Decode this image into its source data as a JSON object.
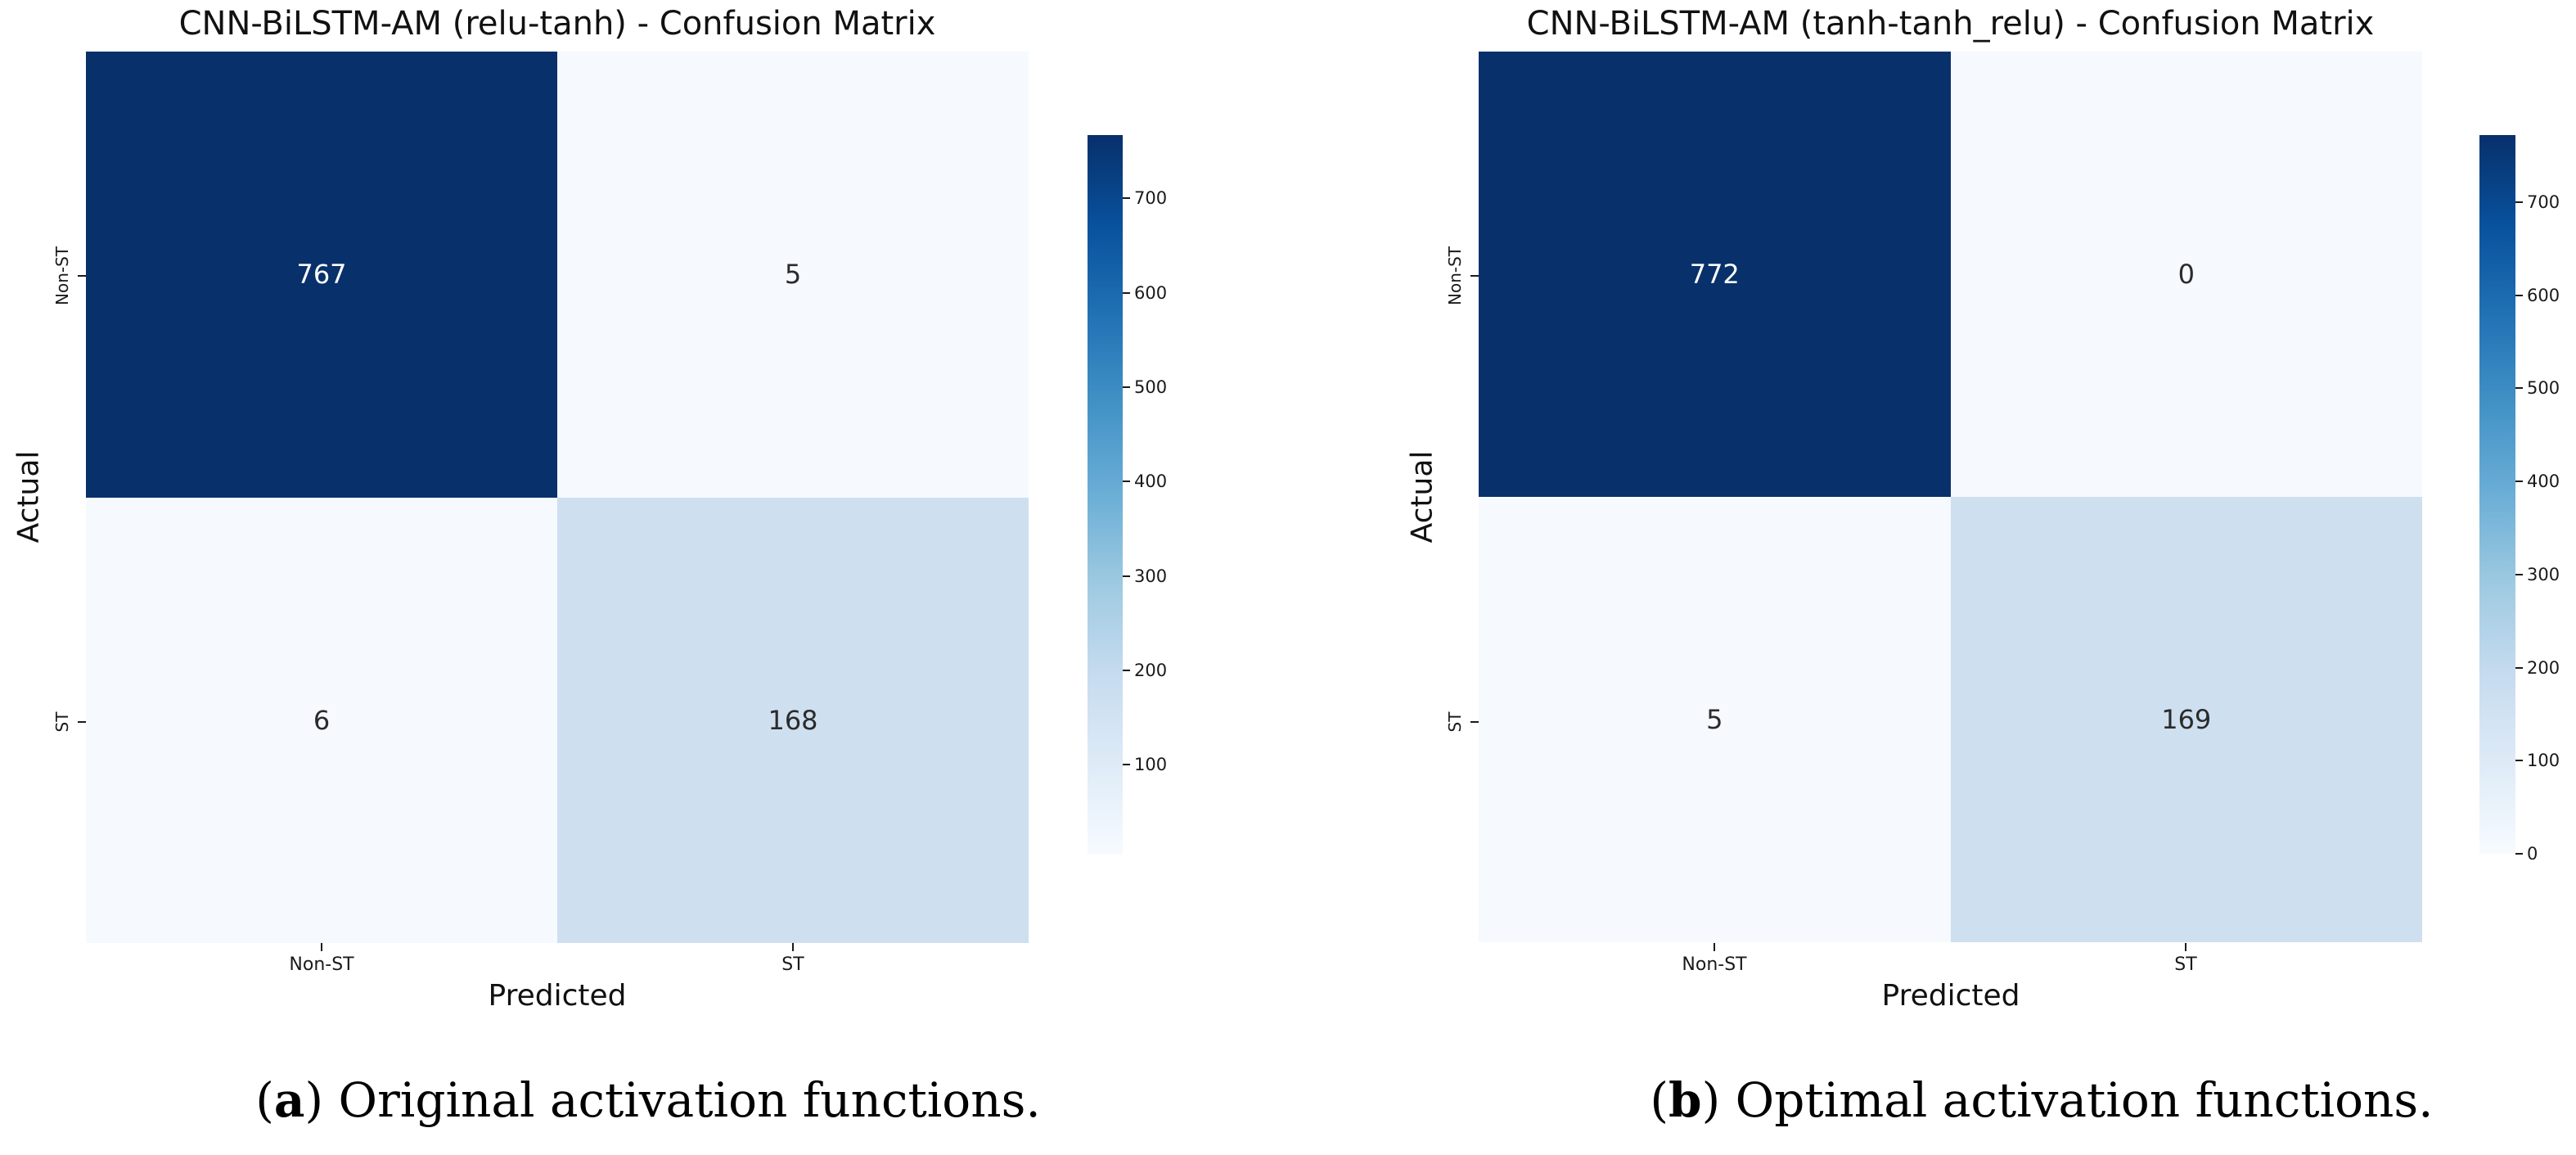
{
  "chart_data": [
    {
      "type": "heatmap",
      "title": "CNN-BiLSTM-AM (relu-tanh) - Confusion Matrix",
      "xlabel": "Predicted",
      "ylabel": "Actual",
      "x_ticklabels": [
        "Non-ST",
        "ST"
      ],
      "y_ticklabels": [
        "Non-ST",
        "ST"
      ],
      "matrix": [
        [
          767,
          5
        ],
        [
          6,
          168
        ]
      ],
      "cell_colors": [
        [
          "#08306b",
          "#f6f9fe"
        ],
        [
          "#f6f9fe",
          "#cedff0"
        ]
      ],
      "cell_text_colors": [
        [
          "#ffffff",
          "#2b2b2b"
        ],
        [
          "#2b2b2b",
          "#2b2b2b"
        ]
      ],
      "colormap": "Blues",
      "grid": false,
      "legend_position": "right-colorbar",
      "colorbar": {
        "vmin": 5,
        "vmax": 767,
        "ticks": [
          100,
          200,
          300,
          400,
          500,
          600,
          700
        ]
      }
    },
    {
      "type": "heatmap",
      "title": "CNN-BiLSTM-AM (tanh-tanh_relu) - Confusion Matrix",
      "xlabel": "Predicted",
      "ylabel": "Actual",
      "x_ticklabels": [
        "Non-ST",
        "ST"
      ],
      "y_ticklabels": [
        "Non-ST",
        "ST"
      ],
      "matrix": [
        [
          772,
          0
        ],
        [
          5,
          169
        ]
      ],
      "cell_colors": [
        [
          "#08306b",
          "#f6f9fe"
        ],
        [
          "#f6f9fe",
          "#cedff0"
        ]
      ],
      "cell_text_colors": [
        [
          "#ffffff",
          "#2b2b2b"
        ],
        [
          "#2b2b2b",
          "#2b2b2b"
        ]
      ],
      "colormap": "Blues",
      "grid": false,
      "legend_position": "right-colorbar",
      "colorbar": {
        "vmin": 0,
        "vmax": 772,
        "ticks": [
          0,
          100,
          200,
          300,
          400,
          500,
          600,
          700
        ]
      }
    }
  ],
  "captions": [
    {
      "prefix": "(",
      "marker": "a",
      "suffix": ") Original activation functions."
    },
    {
      "prefix": "(",
      "marker": "b",
      "suffix": ") Optimal activation functions."
    }
  ]
}
